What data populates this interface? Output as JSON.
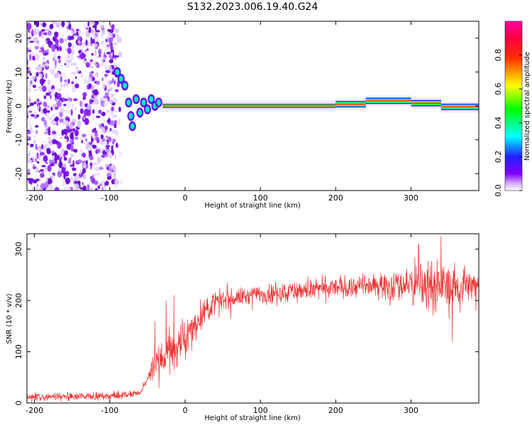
{
  "title": "S132.2023.006.19.40.G24",
  "chart_data": [
    {
      "type": "heatmap",
      "xlabel": "Height of straight line (km)",
      "ylabel": "Frequency (Hz)",
      "xlim": [
        -210,
        390
      ],
      "ylim": [
        -25,
        25
      ],
      "xticks": [
        -200,
        -100,
        0,
        100,
        200,
        300
      ],
      "yticks": [
        -20,
        -10,
        0,
        10,
        20
      ],
      "colorbar": {
        "label": "Normalized spectral amplitude",
        "range": [
          0,
          1
        ],
        "ticks": [
          "0.0",
          "0.2",
          "0.4",
          "0.6",
          "0.8"
        ],
        "colormap": "rainbow",
        "colors": [
          "#ffffff",
          "#8000ff",
          "#0000ff",
          "#00ffff",
          "#00ff00",
          "#ffff00",
          "#ff0000",
          "#ff0080"
        ]
      },
      "features": {
        "noise_region_x": [
          -210,
          -90
        ],
        "tone_freq_hz": 0,
        "tone_start_x": -30,
        "tone_end_x": 390,
        "tone_segments": [
          {
            "x": [
              -30,
              200
            ],
            "freq": 0.0
          },
          {
            "x": [
              200,
              240
            ],
            "freq": 0.5
          },
          {
            "x": [
              240,
              300
            ],
            "freq": 1.5
          },
          {
            "x": [
              300,
              340
            ],
            "freq": 0.8
          },
          {
            "x": [
              340,
              390
            ],
            "freq": -0.3
          }
        ],
        "transition_points": [
          {
            "x": -90,
            "freq": 10
          },
          {
            "x": -85,
            "freq": 8
          },
          {
            "x": -80,
            "freq": 6
          },
          {
            "x": -75,
            "freq": 1
          },
          {
            "x": -72,
            "freq": -3
          },
          {
            "x": -70,
            "freq": -6
          },
          {
            "x": -65,
            "freq": 2
          },
          {
            "x": -60,
            "freq": -2
          },
          {
            "x": -55,
            "freq": 1
          },
          {
            "x": -50,
            "freq": -1
          },
          {
            "x": -45,
            "freq": 2
          },
          {
            "x": -40,
            "freq": 0
          },
          {
            "x": -35,
            "freq": 1
          }
        ]
      }
    },
    {
      "type": "line",
      "xlabel": "Height of straight line (km)",
      "ylabel": "SNR (10 * v/v)",
      "xlim": [
        -210,
        390
      ],
      "ylim": [
        0,
        330
      ],
      "xticks": [
        -200,
        -100,
        0,
        100,
        200,
        300
      ],
      "yticks": [
        0,
        100,
        200,
        300
      ],
      "color": "#ee3030",
      "trend": [
        {
          "x": -210,
          "y": 12
        },
        {
          "x": -100,
          "y": 14
        },
        {
          "x": -60,
          "y": 18
        },
        {
          "x": -45,
          "y": 60
        },
        {
          "x": -30,
          "y": 90
        },
        {
          "x": 0,
          "y": 120
        },
        {
          "x": 20,
          "y": 170
        },
        {
          "x": 40,
          "y": 198
        },
        {
          "x": 100,
          "y": 213
        },
        {
          "x": 200,
          "y": 225
        },
        {
          "x": 300,
          "y": 232
        },
        {
          "x": 390,
          "y": 228
        }
      ],
      "noise_amplitude": [
        {
          "x": -210,
          "a": 8
        },
        {
          "x": -50,
          "a": 8
        },
        {
          "x": -40,
          "a": 40
        },
        {
          "x": 0,
          "a": 45
        },
        {
          "x": 50,
          "a": 20
        },
        {
          "x": 250,
          "a": 25
        },
        {
          "x": 320,
          "a": 55
        },
        {
          "x": 390,
          "a": 30
        }
      ],
      "spikes": [
        {
          "x": -40,
          "y": 160
        },
        {
          "x": -25,
          "y": 200
        },
        {
          "x": -15,
          "y": 210
        },
        {
          "x": 340,
          "y": 325
        },
        {
          "x": 355,
          "y": 120
        },
        {
          "x": 310,
          "y": 310
        }
      ]
    }
  ]
}
